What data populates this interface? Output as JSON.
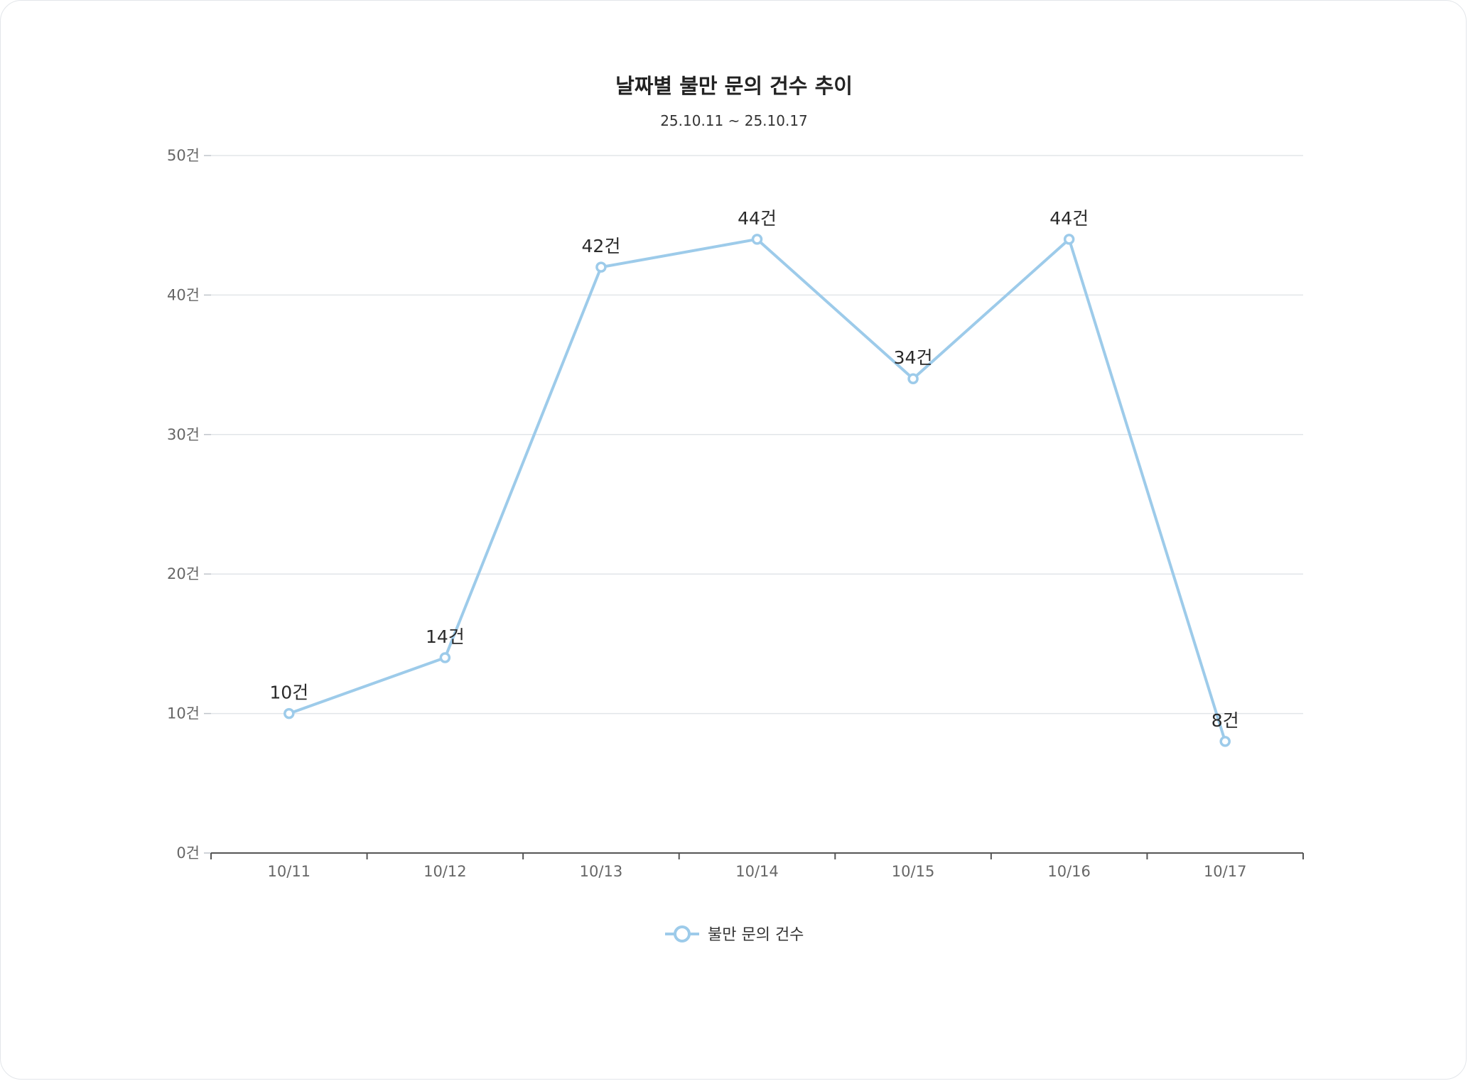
{
  "chart_data": {
    "type": "line",
    "title": "날짜별 불만 문의 건수 추이",
    "subtitle": "25.10.11 ~ 25.10.17",
    "xlabel": "",
    "ylabel": "",
    "categories": [
      "10/11",
      "10/12",
      "10/13",
      "10/14",
      "10/15",
      "10/16",
      "10/17"
    ],
    "series": [
      {
        "name": "불만 문의 건수",
        "values": [
          10,
          14,
          42,
          44,
          34,
          44,
          8
        ],
        "data_labels": [
          "10건",
          "14건",
          "42건",
          "44건",
          "34건",
          "44건",
          "8건"
        ],
        "color": "#9dcbea"
      }
    ],
    "ylim": [
      0,
      50
    ],
    "yticks": [
      0,
      10,
      20,
      30,
      40,
      50
    ],
    "ytick_labels": [
      "0건",
      "10건",
      "20건",
      "30건",
      "40건",
      "50건"
    ],
    "grid": true,
    "legend": "bottom-center"
  },
  "colors": {
    "line": "#9dcbea",
    "grid": "#e2e5e9",
    "axis": "#555555",
    "text": "#222222"
  }
}
